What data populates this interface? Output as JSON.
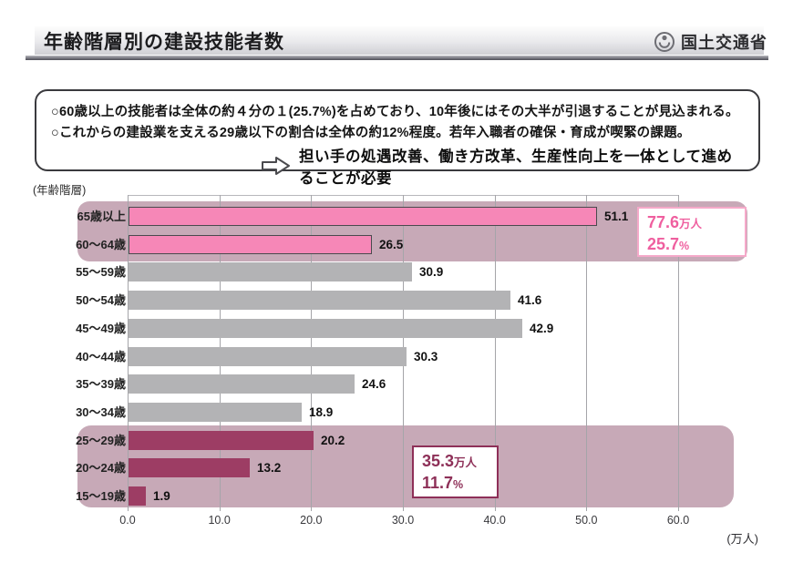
{
  "header": {
    "title": "年齢階層別の建設技能者数",
    "agency": "国土交通省"
  },
  "summary_box": {
    "lines": [
      "○60歳以上の技能者は全体の約４分の１(25.7%)を占めており、10年後にはその大半が引退することが見込まれる。",
      "○これからの建設業を支える29歳以下の割合は全体の約12%程度。若年入職者の確保・育成が喫緊の課題。"
    ],
    "arrow_text": "担い手の処遇改善、働き方改革、生産性向上を一体として進めることが必要"
  },
  "chart_data": {
    "type": "bar",
    "orientation": "horizontal",
    "title": "年齢階層別の建設技能者数",
    "axis_caption": "(年齢階層)",
    "unit_label": "(万人)",
    "categories": [
      "65歳以上",
      "60～64歳",
      "55～59歳",
      "50～54歳",
      "45～49歳",
      "40～44歳",
      "35～39歳",
      "30～34歳",
      "25～29歳",
      "20～24歳",
      "15～19歳"
    ],
    "values": [
      51.1,
      26.5,
      30.9,
      41.6,
      42.9,
      30.3,
      24.6,
      18.9,
      20.2,
      13.2,
      1.9
    ],
    "groups": [
      "senior",
      "senior",
      "mid",
      "mid",
      "mid",
      "mid",
      "mid",
      "mid",
      "young",
      "young",
      "young"
    ],
    "x_ticks": [
      0.0,
      10.0,
      20.0,
      30.0,
      40.0,
      50.0,
      60.0
    ],
    "xlim": [
      0,
      60
    ],
    "grid": true,
    "annotations": {
      "senior": {
        "value": "77.6",
        "unit": "万人",
        "pct": "25.7",
        "pct_unit": "%"
      },
      "young": {
        "value": "35.3",
        "unit": "万人",
        "pct": "11.7",
        "pct_unit": "%"
      }
    },
    "colors": {
      "senior_bar": "#f687b7",
      "mid_bar": "#b3b3b5",
      "young_bar": "#9d3d64",
      "highlight_band": "#c7a9b7",
      "senior_text": "#ef5f9f",
      "young_text": "#8e3058"
    }
  }
}
